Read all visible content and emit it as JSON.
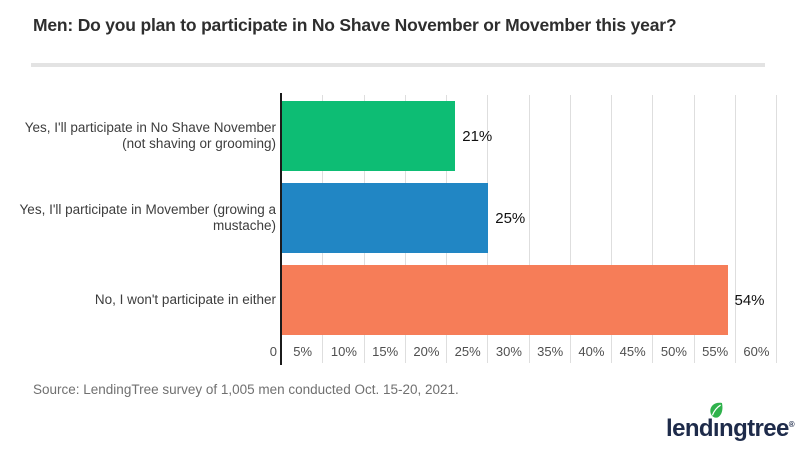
{
  "chart_data": {
    "type": "bar",
    "orientation": "horizontal",
    "title": "Men: Do you plan to participate in No Shave November or Movember this year?",
    "categories": [
      "Yes, I'll participate in No Shave November (not shaving or grooming)",
      "Yes, I'll participate in Movember (growing a mustache)",
      "No, I won't participate in either"
    ],
    "category_lines": [
      [
        "Yes, I'll participate in No Shave November",
        "(not shaving or grooming)"
      ],
      [
        "Yes, I'll participate in Movember (growing a",
        "mustache)"
      ],
      [
        "No, I won't participate in either"
      ]
    ],
    "values": [
      21,
      25,
      54
    ],
    "value_labels": [
      "21%",
      "25%",
      "54%"
    ],
    "bar_colors": [
      "#0dbd74",
      "#2186c4",
      "#f67d58"
    ],
    "xlim": [
      0,
      60
    ],
    "x_tick_labels": [
      "0",
      "5%",
      "10%",
      "15%",
      "20%",
      "25%",
      "30%",
      "35%",
      "40%",
      "45%",
      "50%",
      "55%",
      "60%"
    ],
    "grid": true,
    "legend": false
  },
  "source": "Source: LendingTree survey of 1,005 men conducted Oct. 15-20, 2021.",
  "logo": {
    "text": "lendingtree",
    "registered_mark": "®"
  },
  "colors": {
    "green_bar": "#0dbd74",
    "blue_bar": "#2186c4",
    "orange_bar": "#f67d58",
    "gridline": "#dedede",
    "axis": "#1b1b1b",
    "divider": "#e3e3e3",
    "logo_navy": "#1e2b4a",
    "logo_leaf_green": "#2fb24c"
  }
}
